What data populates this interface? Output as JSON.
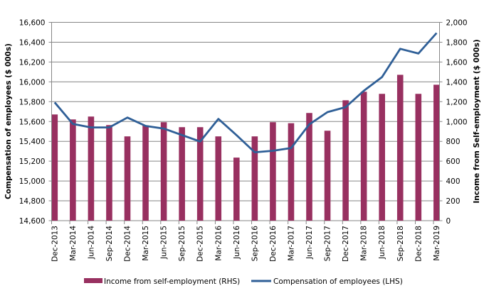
{
  "chart_data": {
    "type": "bar+line",
    "categories": [
      "Dec-2013",
      "Mar-2014",
      "Jun-2014",
      "Sep-2014",
      "Dec-2014",
      "Mar-2015",
      "Jun-2015",
      "Sep-2015",
      "Dec-2015",
      "Mar-2016",
      "Jun-2016",
      "Sep-2016",
      "Dec-2016",
      "Mar-2017",
      "Jun-2017",
      "Sep-2017",
      "Dec-2017",
      "Mar-2018",
      "Jun-2018",
      "Sep-2018",
      "Dec-2018",
      "Mar-2019"
    ],
    "series": [
      {
        "name": "Income from self-employment (RHS)",
        "type": "bar",
        "axis": "right",
        "color": "#983060",
        "values": [
          1071,
          1021,
          1050,
          964,
          850,
          960,
          993,
          943,
          943,
          850,
          636,
          850,
          993,
          983,
          1086,
          907,
          1214,
          1300,
          1279,
          1471,
          1279,
          1371
        ]
      },
      {
        "name": "Compensation of employees (LHS)",
        "type": "line",
        "axis": "left",
        "color": "#2f5f97",
        "values": [
          15793,
          15576,
          15540,
          15540,
          15640,
          15555,
          15529,
          15464,
          15398,
          15626,
          15462,
          15290,
          15305,
          15333,
          15571,
          15695,
          15745,
          15910,
          16048,
          16333,
          16286,
          16493
        ]
      }
    ],
    "ylabel": "Compensation of employees ($ 000s)",
    "y2label": "Income from Self-employment ($ 000s)",
    "ylim": [
      14600,
      16600
    ],
    "y2lim": [
      0,
      2000
    ],
    "yticks": [
      "14,600",
      "14,800",
      "15,000",
      "15,200",
      "15,400",
      "15,600",
      "15,800",
      "16,000",
      "16,200",
      "16,400",
      "16,600"
    ],
    "y2ticks": [
      "0",
      "200",
      "400",
      "600",
      "800",
      "1,000",
      "1,200",
      "1,400",
      "1,600",
      "1,800",
      "2,000"
    ],
    "grid": true,
    "legend": "bottom"
  }
}
